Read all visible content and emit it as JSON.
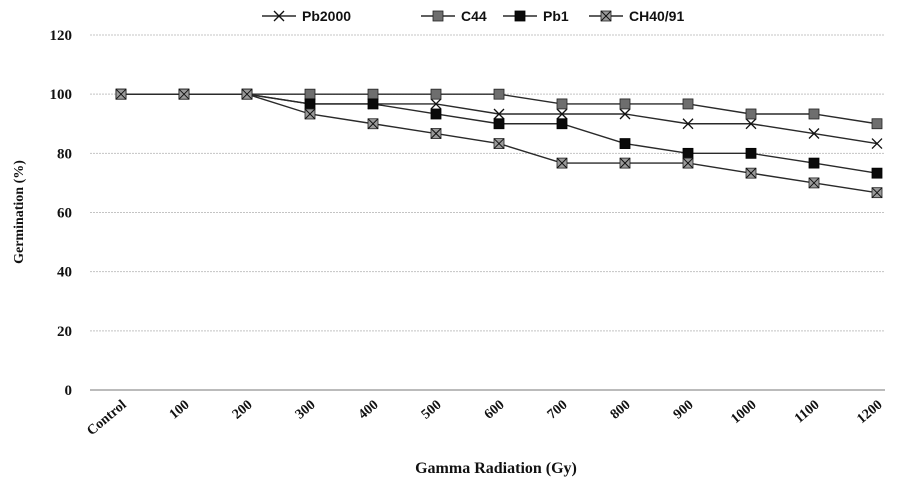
{
  "chart_data": {
    "type": "line",
    "title": "",
    "xlabel": "Gamma Radiation (Gy)",
    "ylabel": "Germination (%)",
    "categories": [
      "Control",
      "100",
      "200",
      "300",
      "400",
      "500",
      "600",
      "700",
      "800",
      "900",
      "1000",
      "1100",
      "1200"
    ],
    "ylim": [
      0,
      120
    ],
    "yticks": [
      0,
      20,
      40,
      60,
      80,
      100,
      120
    ],
    "grid": true,
    "legend_position": "top",
    "series": [
      {
        "name": "Pb2000",
        "marker": "x",
        "values": [
          100,
          100,
          100,
          96.7,
          96.7,
          96.7,
          93.3,
          93.3,
          93.3,
          90,
          90,
          86.7,
          83.3
        ]
      },
      {
        "name": "C44",
        "marker": "square-gray",
        "values": [
          100,
          100,
          100,
          100,
          100,
          100,
          100,
          96.7,
          96.7,
          96.7,
          93.3,
          93.3,
          90
        ]
      },
      {
        "name": "Pb1",
        "marker": "square-black",
        "values": [
          100,
          100,
          100,
          96.7,
          96.7,
          93.3,
          90,
          90,
          83.3,
          80,
          80,
          76.7,
          73.3
        ]
      },
      {
        "name": "CH40/91",
        "marker": "square-x",
        "values": [
          100,
          100,
          100,
          93.3,
          90,
          86.7,
          83.3,
          76.7,
          76.7,
          76.7,
          73.3,
          70,
          66.7
        ]
      }
    ]
  }
}
